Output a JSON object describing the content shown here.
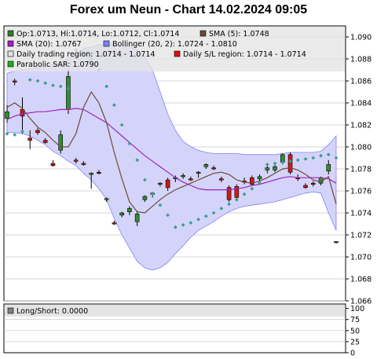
{
  "title": "Forex um Neun - Chart 14.02.2024 09:05",
  "legend": {
    "ohlc": "Op:1.0713, Hi:1.0714, Lo:1.0712, Cl:1.0714",
    "sma5": "SMA (5): 1.0748",
    "sma20": "SMA (20): 1.0767",
    "bollinger": "Bollinger (20, 2): 1.0724 - 1.0810",
    "daily_trading": "Daily trading region: 1.0714 - 1.0714",
    "daily_sl": "Daily S/L region: 1.0714 - 1.0714",
    "psar": "Parabolic SAR: 1.0790",
    "longshort": "Long/Short: 0.0000"
  },
  "colors": {
    "ohlc": "#2e7d32",
    "sma5": "#6d4a35",
    "sma20": "#a020c0",
    "bollinger": "#8080ff",
    "daily_trading": "#e0e0e0",
    "daily_sl": "#e01010",
    "psar": "#19b319",
    "longshort": "#808080",
    "candle_up": "#2f8f2f",
    "candle_down": "#d01818",
    "band_fill": "#d4d4fa",
    "sar_dot": "#3a9e8a"
  },
  "chart_data": [
    {
      "type": "candlestick",
      "ylim": [
        1.066,
        1.091
      ],
      "y_ticks": [
        "1.066",
        "1.068",
        "1.070",
        "1.072",
        "1.074",
        "1.076",
        "1.078",
        "1.080",
        "1.082",
        "1.084",
        "1.086",
        "1.088",
        "1.090"
      ],
      "candles": [
        {
          "o": 1.0826,
          "h": 1.0838,
          "l": 1.0822,
          "c": 1.0832
        },
        {
          "o": 1.086,
          "h": 1.0862,
          "l": 1.0856,
          "c": 1.0859
        },
        {
          "o": 1.0834,
          "h": 1.0845,
          "l": 1.0812,
          "c": 1.0828
        },
        {
          "o": 1.0808,
          "h": 1.0815,
          "l": 1.0798,
          "c": 1.0806
        },
        {
          "o": 1.0815,
          "h": 1.0817,
          "l": 1.0811,
          "c": 1.0813
        },
        {
          "o": 1.0806,
          "h": 1.0808,
          "l": 1.0803,
          "c": 1.0804
        },
        {
          "o": 1.0785,
          "h": 1.0788,
          "l": 1.0782,
          "c": 1.0783
        },
        {
          "o": 1.0797,
          "h": 1.0815,
          "l": 1.0794,
          "c": 1.0811
        },
        {
          "o": 1.0834,
          "h": 1.087,
          "l": 1.083,
          "c": 1.0864
        },
        {
          "o": 1.0788,
          "h": 1.079,
          "l": 1.0785,
          "c": 1.0787
        },
        {
          "o": 1.0785,
          "h": 1.0787,
          "l": 1.0783,
          "c": 1.0784
        },
        {
          "o": 1.0775,
          "h": 1.0777,
          "l": 1.0762,
          "c": 1.0776
        },
        {
          "o": 1.0777,
          "h": 1.0779,
          "l": 1.0775,
          "c": 1.0776
        },
        {
          "o": 1.0752,
          "h": 1.0754,
          "l": 1.075,
          "c": 1.0753
        },
        {
          "o": 1.0731,
          "h": 1.0733,
          "l": 1.0729,
          "c": 1.073
        },
        {
          "o": 1.0738,
          "h": 1.0741,
          "l": 1.0736,
          "c": 1.074
        },
        {
          "o": 1.0741,
          "h": 1.0746,
          "l": 1.0738,
          "c": 1.0744
        },
        {
          "o": 1.0732,
          "h": 1.0742,
          "l": 1.0728,
          "c": 1.0739
        },
        {
          "o": 1.0752,
          "h": 1.0756,
          "l": 1.075,
          "c": 1.0755
        },
        {
          "o": 1.0757,
          "h": 1.0759,
          "l": 1.0754,
          "c": 1.0758
        },
        {
          "o": 1.0766,
          "h": 1.0768,
          "l": 1.0764,
          "c": 1.0767
        },
        {
          "o": 1.077,
          "h": 1.0772,
          "l": 1.076,
          "c": 1.0763
        },
        {
          "o": 1.0771,
          "h": 1.0774,
          "l": 1.0768,
          "c": 1.0772
        },
        {
          "o": 1.0773,
          "h": 1.0776,
          "l": 1.0771,
          "c": 1.0774
        },
        {
          "o": 1.0771,
          "h": 1.0773,
          "l": 1.0769,
          "c": 1.077
        },
        {
          "o": 1.0776,
          "h": 1.0778,
          "l": 1.0772,
          "c": 1.0777
        },
        {
          "o": 1.0782,
          "h": 1.0785,
          "l": 1.078,
          "c": 1.0784
        },
        {
          "o": 1.0781,
          "h": 1.0783,
          "l": 1.0779,
          "c": 1.078
        },
        {
          "o": 1.0771,
          "h": 1.0773,
          "l": 1.0768,
          "c": 1.077
        },
        {
          "o": 1.0763,
          "h": 1.0765,
          "l": 1.075,
          "c": 1.0752
        },
        {
          "o": 1.0764,
          "h": 1.0766,
          "l": 1.0752,
          "c": 1.0754
        },
        {
          "o": 1.0769,
          "h": 1.0772,
          "l": 1.0766,
          "c": 1.0768
        },
        {
          "o": 1.0772,
          "h": 1.0774,
          "l": 1.0765,
          "c": 1.0766
        },
        {
          "o": 1.0771,
          "h": 1.0775,
          "l": 1.0769,
          "c": 1.0773
        },
        {
          "o": 1.0779,
          "h": 1.0783,
          "l": 1.0776,
          "c": 1.0781
        },
        {
          "o": 1.0779,
          "h": 1.0785,
          "l": 1.0777,
          "c": 1.0782
        },
        {
          "o": 1.0786,
          "h": 1.0794,
          "l": 1.0784,
          "c": 1.0793
        },
        {
          "o": 1.0793,
          "h": 1.0795,
          "l": 1.0775,
          "c": 1.0777
        },
        {
          "o": 1.0772,
          "h": 1.0775,
          "l": 1.0769,
          "c": 1.0771
        },
        {
          "o": 1.0765,
          "h": 1.0767,
          "l": 1.0762,
          "c": 1.0763
        },
        {
          "o": 1.0767,
          "h": 1.0769,
          "l": 1.0764,
          "c": 1.0766
        },
        {
          "o": 1.0767,
          "h": 1.0773,
          "l": 1.0765,
          "c": 1.0772
        },
        {
          "o": 1.0778,
          "h": 1.0788,
          "l": 1.0775,
          "c": 1.0784
        },
        {
          "o": 1.0713,
          "h": 1.0714,
          "l": 1.0712,
          "c": 1.0714
        }
      ],
      "sma5": [
        1.0836,
        1.084,
        1.0835,
        1.0826,
        1.0818,
        1.0813,
        1.0806,
        1.08,
        1.08,
        1.0812,
        1.0836,
        1.085,
        1.084,
        1.0822,
        1.0795,
        1.0771,
        1.075,
        1.0741,
        1.074,
        1.0746,
        1.0752,
        1.0757,
        1.0761,
        1.0764,
        1.0767,
        1.077,
        1.0773,
        1.0776,
        1.0777,
        1.0775,
        1.077,
        1.0768,
        1.0767,
        1.0769,
        1.0772,
        1.0776,
        1.078,
        1.0781,
        1.0779,
        1.0775,
        1.077,
        1.0768,
        1.0773,
        1.0748
      ],
      "sma20": [
        1.0825,
        1.0828,
        1.083,
        1.0831,
        1.0832,
        1.0832,
        1.0833,
        1.0834,
        1.0834,
        1.0835,
        1.0834,
        1.083,
        1.0826,
        1.0822,
        1.0816,
        1.081,
        1.0804,
        1.0798,
        1.0792,
        1.0787,
        1.0782,
        1.0777,
        1.0772,
        1.0768,
        1.0765,
        1.0762,
        1.0761,
        1.0761,
        1.0761,
        1.0761,
        1.0762,
        1.0763,
        1.0765,
        1.0766,
        1.0768,
        1.077,
        1.0772,
        1.0773,
        1.0772,
        1.0772,
        1.0772,
        1.0772,
        1.0771,
        1.0767
      ],
      "bollinger_upper": [
        1.0867,
        1.0869,
        1.087,
        1.0871,
        1.0872,
        1.0873,
        1.0875,
        1.0877,
        1.088,
        1.0884,
        1.0889,
        1.0891,
        1.0893,
        1.0894,
        1.0893,
        1.0892,
        1.0891,
        1.0888,
        1.0882,
        1.087,
        1.085,
        1.083,
        1.0815,
        1.0805,
        1.08,
        1.0797,
        1.0795,
        1.0794,
        1.0794,
        1.0794,
        1.0794,
        1.0793,
        1.0793,
        1.0793,
        1.0793,
        1.0793,
        1.0794,
        1.0795,
        1.0795,
        1.0795,
        1.0795,
        1.0796,
        1.0802,
        1.081
      ],
      "bollinger_lower": [
        1.0813,
        1.0813,
        1.0812,
        1.081,
        1.0806,
        1.0802,
        1.0796,
        1.0792,
        1.0787,
        1.0783,
        1.0776,
        1.077,
        1.0762,
        1.0752,
        1.0735,
        1.072,
        1.0708,
        1.0696,
        1.069,
        1.0688,
        1.069,
        1.0695,
        1.0703,
        1.071,
        1.0718,
        1.0724,
        1.0728,
        1.0732,
        1.0737,
        1.0741,
        1.0744,
        1.0746,
        1.0747,
        1.0748,
        1.0749,
        1.075,
        1.0752,
        1.0754,
        1.0756,
        1.0758,
        1.0759,
        1.0758,
        1.074,
        1.0724
      ],
      "psar": [
        1.0812,
        1.0811,
        1.0814,
        1.0861,
        1.086,
        1.0858,
        1.0856,
        1.0855,
        1.0853,
        1.0888,
        1.0885,
        1.088,
        1.087,
        1.0855,
        1.0838,
        1.082,
        1.0803,
        1.0788,
        1.077,
        1.0757,
        1.0747,
        1.0738,
        1.0727,
        1.0729,
        1.0731,
        1.0734,
        1.0737,
        1.074,
        1.0744,
        1.0748,
        1.0752,
        1.0757,
        1.0762,
        1.0767,
        1.0784,
        1.0785,
        1.0786,
        1.0787,
        1.0788,
        1.0789,
        1.079,
        1.0792,
        1.0793,
        1.079
      ]
    },
    {
      "type": "line",
      "ylim": [
        0,
        110
      ],
      "y_ticks": [
        "0",
        "25",
        "50",
        "75",
        "100"
      ],
      "values": []
    }
  ]
}
